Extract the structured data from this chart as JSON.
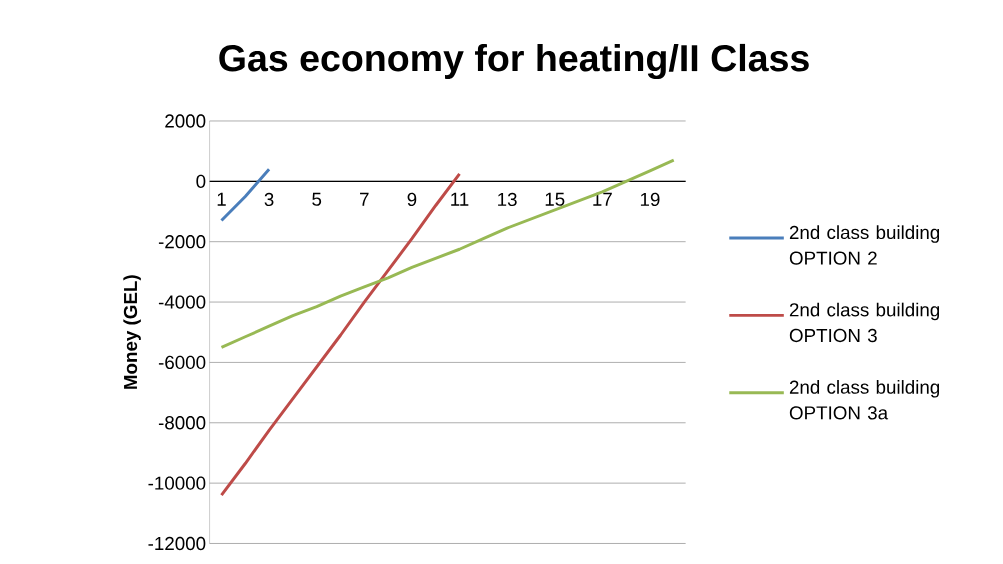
{
  "chart_data": {
    "type": "line",
    "title": "Gas economy for heating/II Class",
    "ylabel": "Money (GEL)",
    "categories": [
      "1",
      null,
      "3",
      null,
      "5",
      null,
      "7",
      null,
      "9",
      null,
      "11",
      null,
      "13",
      null,
      "15",
      null,
      "17",
      null,
      "19",
      null
    ],
    "series": [
      {
        "name": "2nd class building OPTION 2",
        "color": "#4a7ebb",
        "values": [
          -1300,
          -500,
          400,
          null,
          null,
          null,
          null,
          null,
          null,
          null,
          null,
          null,
          null,
          null,
          null,
          null,
          null,
          null,
          null,
          null
        ]
      },
      {
        "name": "2nd class building OPTION 3",
        "color": "#be4b48",
        "values": [
          -10400,
          -9350,
          -8250,
          -7200,
          -6150,
          -5100,
          -4000,
          -2950,
          -1900,
          -800,
          250,
          null,
          null,
          null,
          null,
          null,
          null,
          null,
          null,
          null
        ]
      },
      {
        "name": "2nd class building OPTION 3a",
        "color": "#98b954",
        "values": [
          -5500,
          -5150,
          -4800,
          -4450,
          -4150,
          -3800,
          -3500,
          -3200,
          -2850,
          -2550,
          -2250,
          -1900,
          -1550,
          -1250,
          -950,
          -650,
          -350,
          0,
          350,
          700
        ]
      }
    ],
    "ylim": [
      -12000,
      2000
    ],
    "yticks": [
      -12000,
      -10000,
      -8000,
      -6000,
      -4000,
      -2000,
      0,
      2000
    ],
    "grid": "y",
    "legend": "right",
    "marker": "none",
    "line_style": "solid"
  }
}
